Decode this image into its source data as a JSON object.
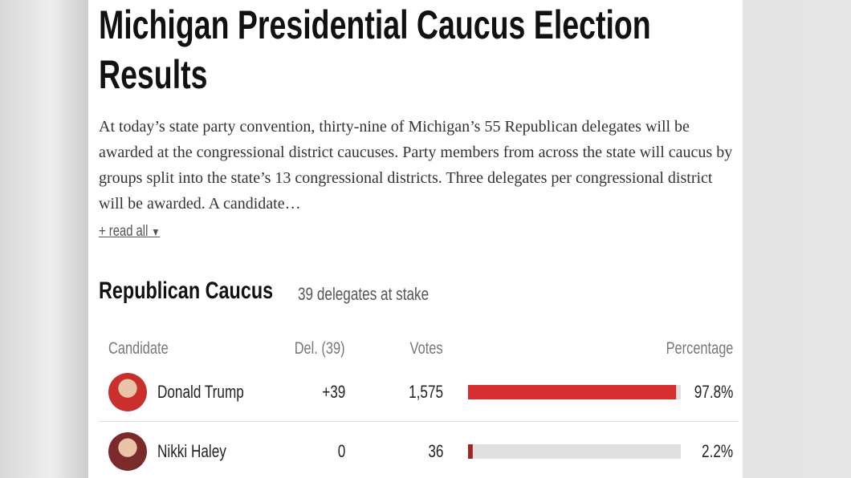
{
  "header": {
    "title": "Michigan Presidential Caucus Election Results"
  },
  "intro": {
    "text": "At today’s state party convention, thirty-nine of Michigan’s 55 Republican delegates will be awarded at the congressional district caucuses. Party members from across the state will caucus by groups split into the state’s 13 congressional districts. Three delegates per congressional district will be awarded. A candidate…",
    "read_more": "+ read all"
  },
  "race": {
    "title": "Republican Caucus",
    "subtitle": "39 delegates at stake",
    "columns": [
      "Candidate",
      "Del. (39)",
      "Votes",
      "Percentage"
    ],
    "rows": [
      {
        "name": "Donald Trump",
        "delegates": "+39",
        "votes": "1,575",
        "percentage": 97.8,
        "percentage_label": "97.8%"
      },
      {
        "name": "Nikki Haley",
        "delegates": "0",
        "votes": "36",
        "percentage": 2.2,
        "percentage_label": "2.2%"
      }
    ]
  }
}
